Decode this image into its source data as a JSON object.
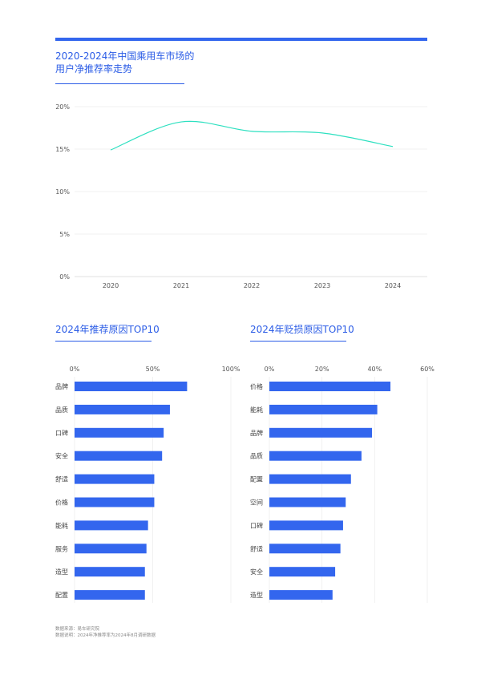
{
  "accent_color": "#3366ee",
  "line_color": "#2de0c0",
  "title": {
    "line1": "2020-2024年中国乘用车市场的",
    "line2": "用户净推荐率走势"
  },
  "chart_data": [
    {
      "type": "line",
      "x": [
        "2020",
        "2021",
        "2022",
        "2023",
        "2024"
      ],
      "series": [
        {
          "values": [
            14.9,
            18.2,
            17.1,
            16.9,
            15.3
          ]
        }
      ],
      "yticks": [
        "0%",
        "5%",
        "10%",
        "15%",
        "20%"
      ],
      "ylim": [
        0,
        20
      ],
      "grid": true
    },
    {
      "type": "bar",
      "title": "2024年推荐原因TOP10",
      "orientation": "horizontal",
      "categories": [
        "品牌",
        "品质",
        "口碑",
        "安全",
        "舒适",
        "价格",
        "能耗",
        "服务",
        "造型",
        "配置"
      ],
      "values": [
        72,
        61,
        57,
        56,
        51,
        51,
        47,
        46,
        45,
        45
      ],
      "xticks": [
        "0%",
        "50%",
        "100%"
      ],
      "xlim": [
        0,
        100
      ],
      "grid": true
    },
    {
      "type": "bar",
      "title": "2024年贬损原因TOP10",
      "orientation": "horizontal",
      "categories": [
        "价格",
        "能耗",
        "品牌",
        "品质",
        "配置",
        "空间",
        "口碑",
        "舒适",
        "安全",
        "造型"
      ],
      "values": [
        46,
        41,
        39,
        35,
        31,
        29,
        28,
        27,
        25,
        24
      ],
      "xticks": [
        "0%",
        "20%",
        "40%",
        "60%"
      ],
      "xlim": [
        0,
        60
      ],
      "grid": true
    }
  ],
  "footnotes": {
    "source": "数据来源：易车研究院",
    "note": "数据说明：2024年净推荐率为2024年8月调研数据"
  }
}
